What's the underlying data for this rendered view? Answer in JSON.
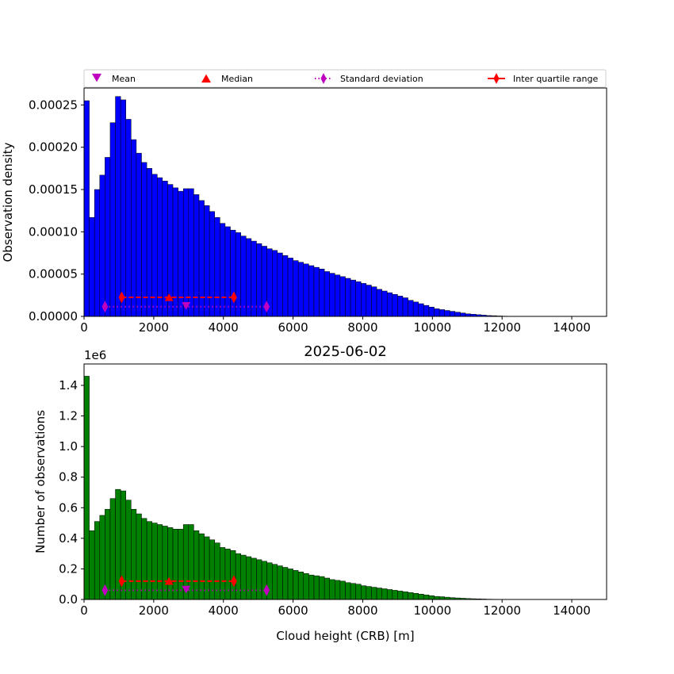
{
  "figure": {
    "title": "2025-06-02"
  },
  "legend": {
    "entries": [
      {
        "label": "Mean",
        "marker": "triangle-down",
        "color": "#bf00bf"
      },
      {
        "label": "Median",
        "marker": "triangle-up",
        "color": "#ff0000"
      },
      {
        "label": "Standard deviation",
        "marker": "thin-diamond",
        "linestyle": "dotted",
        "color": "#bf00bf"
      },
      {
        "label": "Inter quartile range",
        "marker": "thin-diamond",
        "linestyle": "solid",
        "color": "#ff0000"
      }
    ]
  },
  "chart_data": [
    {
      "type": "bar",
      "color": "#0000ff",
      "xlabel": "",
      "ylabel": "Observation density",
      "xlim": [
        0,
        15000
      ],
      "ylim": [
        0,
        0.00027
      ],
      "xticks": [
        0,
        2000,
        4000,
        6000,
        8000,
        10000,
        12000,
        14000
      ],
      "xtick_labels": [
        "0",
        "2000",
        "4000",
        "6000",
        "8000",
        "10000",
        "12000",
        "14000"
      ],
      "yticks": [
        0,
        5e-05,
        0.0001,
        0.00015,
        0.0002,
        0.00025
      ],
      "ytick_labels": [
        "0.00000",
        "0.00005",
        "0.00010",
        "0.00015",
        "0.00020",
        "0.00025"
      ],
      "bin_width": 150,
      "values": [
        0.000255,
        0.000117,
        0.00015,
        0.000167,
        0.000188,
        0.000229,
        0.00026,
        0.000256,
        0.000233,
        0.000209,
        0.000193,
        0.000182,
        0.000175,
        0.000168,
        0.000164,
        0.00016,
        0.000156,
        0.000152,
        0.000148,
        0.000151,
        0.000151,
        0.000144,
        0.000137,
        0.000131,
        0.000124,
        0.000117,
        0.00011,
        0.000106,
        0.000102,
        9.9e-05,
        9.5e-05,
        9.2e-05,
        8.9e-05,
        8.6e-05,
        8.3e-05,
        8e-05,
        7.8e-05,
        7.5e-05,
        7.2e-05,
        6.9e-05,
        6.6e-05,
        6.4e-05,
        6.2e-05,
        6e-05,
        5.8e-05,
        5.6e-05,
        5.3e-05,
        5.1e-05,
        4.9e-05,
        4.7e-05,
        4.5e-05,
        4.3e-05,
        4.1e-05,
        3.9e-05,
        3.7e-05,
        3.5e-05,
        3.2e-05,
        3e-05,
        2.8e-05,
        2.6e-05,
        2.4e-05,
        2.2e-05,
        1.9e-05,
        1.7e-05,
        1.5e-05,
        1.3e-05,
        1.1e-05,
        9e-06,
        8e-06,
        7e-06,
        6e-06,
        5e-06,
        4e-06,
        3e-06,
        2.5e-06,
        2e-06,
        1.5e-06,
        1e-06,
        8e-07,
        5e-07,
        3e-07
      ],
      "markers": {
        "mean": {
          "x": 2930,
          "y": 1.15e-05
        },
        "median": {
          "x": 2440,
          "y": 2.25e-05
        },
        "std": {
          "x": [
            600,
            5240
          ],
          "y": 1.15e-05
        },
        "iqr": {
          "x": [
            1080,
            4300
          ],
          "y": 2.25e-05
        }
      }
    },
    {
      "type": "bar",
      "color": "#008000",
      "title": "2025-06-02",
      "xlabel": "Cloud height (CRB) [m]",
      "ylabel": "Number of observations",
      "offset_label": "1e6",
      "xlim": [
        0,
        15000
      ],
      "ylim": [
        0,
        1.54
      ],
      "xticks": [
        0,
        2000,
        4000,
        6000,
        8000,
        10000,
        12000,
        14000
      ],
      "xtick_labels": [
        "0",
        "2000",
        "4000",
        "6000",
        "8000",
        "10000",
        "12000",
        "14000"
      ],
      "yticks": [
        0,
        0.2,
        0.4,
        0.6,
        0.8,
        1.0,
        1.2,
        1.4
      ],
      "ytick_labels": [
        "0.0",
        "0.2",
        "0.4",
        "0.6",
        "0.8",
        "1.0",
        "1.2",
        "1.4"
      ],
      "bin_width": 150,
      "values": [
        1.46,
        0.45,
        0.51,
        0.55,
        0.59,
        0.66,
        0.72,
        0.71,
        0.65,
        0.59,
        0.56,
        0.53,
        0.51,
        0.5,
        0.49,
        0.48,
        0.47,
        0.46,
        0.46,
        0.49,
        0.49,
        0.45,
        0.43,
        0.41,
        0.39,
        0.37,
        0.34,
        0.33,
        0.32,
        0.3,
        0.29,
        0.28,
        0.27,
        0.26,
        0.25,
        0.24,
        0.23,
        0.22,
        0.21,
        0.2,
        0.19,
        0.18,
        0.17,
        0.16,
        0.155,
        0.15,
        0.14,
        0.13,
        0.125,
        0.12,
        0.11,
        0.105,
        0.1,
        0.09,
        0.085,
        0.08,
        0.075,
        0.07,
        0.065,
        0.06,
        0.055,
        0.05,
        0.045,
        0.04,
        0.035,
        0.03,
        0.025,
        0.02,
        0.018,
        0.015,
        0.012,
        0.01,
        0.008,
        0.006,
        0.005,
        0.004,
        0.003,
        0.002,
        0.0015,
        0.001,
        0.0005
      ],
      "markers": {
        "mean": {
          "x": 2930,
          "y": 0.06
        },
        "median": {
          "x": 2440,
          "y": 0.12
        },
        "std": {
          "x": [
            600,
            5240
          ],
          "y": 0.06
        },
        "iqr": {
          "x": [
            1080,
            4300
          ],
          "y": 0.12
        }
      }
    }
  ]
}
